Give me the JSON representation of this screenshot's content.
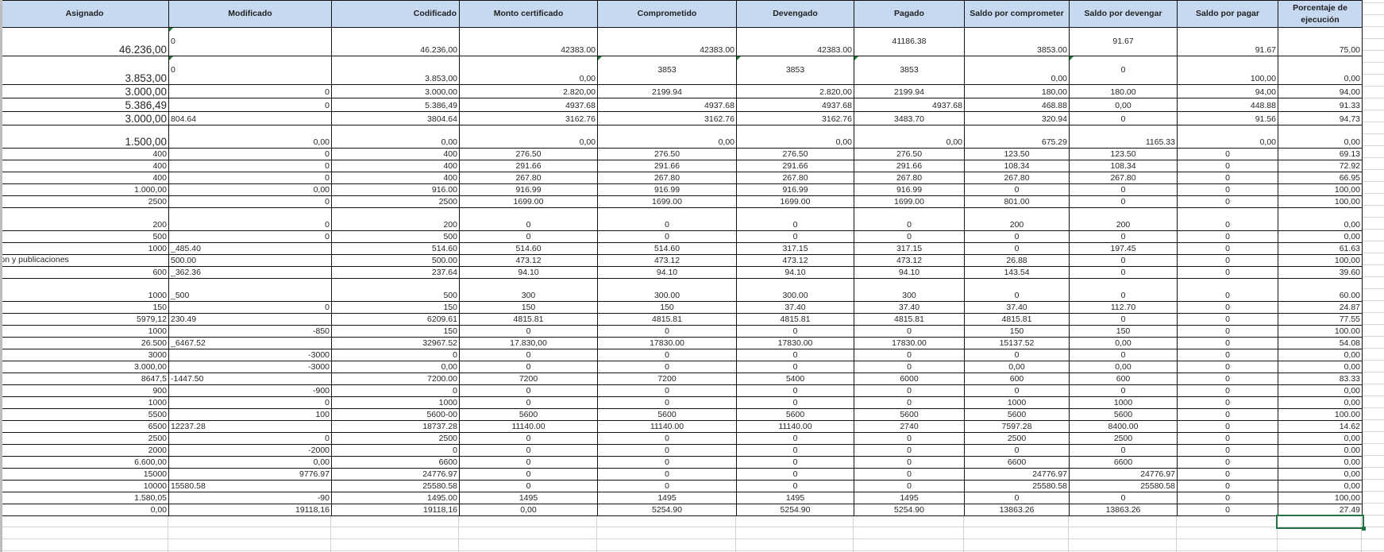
{
  "columns": [
    "Asignado",
    "Modificado",
    "Codificado",
    "Monto certificado",
    "Comprometido",
    "Devengado",
    "Pagado",
    "Saldo por comprometer",
    "Saldo por devengar",
    "Saldo por pagar",
    "Porcentaje de ejecución"
  ],
  "rows": [
    [
      "46.236,00",
      "0",
      "46.236,00",
      "42383.00",
      "42383.00",
      "42383.00",
      "41186.38",
      "3853.00",
      "91.67",
      "91.67",
      "75,00"
    ],
    [
      "3.853,00",
      "0",
      "3.853,00",
      "0,00",
      "3853",
      "3853",
      "3853",
      "0,00",
      "0",
      "100,00",
      "0,00"
    ],
    [
      "3.000,00",
      "0",
      "3.000,00",
      "2.820,00",
      "2199.94",
      "2.820,00",
      "2199.94",
      "180,00",
      "180.00",
      "94,00",
      "94,00"
    ],
    [
      "5.386,49",
      "0",
      "5.386,49",
      "4937.68",
      "4937.68",
      "4937.68",
      "4937.68",
      "468.88",
      "0,00",
      "448.88",
      "91.33"
    ],
    [
      "3.000,00",
      "804.64",
      "3804.64",
      "3162.76",
      "3162.76",
      "3162.76",
      "3483.70",
      "320.94",
      "0",
      "91.56",
      "94,73"
    ],
    [
      "1.500,00",
      "0,00",
      "0,00",
      "0,00",
      "0,00",
      "0,00",
      "0,00",
      "675.29",
      "1165.33",
      "0,00",
      "0,00"
    ],
    [
      "400",
      "0",
      "400",
      "276.50",
      "276.50",
      "276.50",
      "276.50",
      "123.50",
      "123.50",
      "0",
      "69.13"
    ],
    [
      "400",
      "0",
      "400",
      "291.66",
      "291.66",
      "291.66",
      "291.66",
      "108.34",
      "108.34",
      "0",
      "72.92"
    ],
    [
      "400",
      "0",
      "400",
      "267.80",
      "267.80",
      "267.80",
      "267.80",
      "267.80",
      "267.80",
      "0",
      "66.95"
    ],
    [
      "1.000,00",
      "0,00",
      "916.00",
      "916.99",
      "916.99",
      "916.99",
      "916.99",
      "0",
      "0",
      "0",
      "100,00"
    ],
    [
      "2500",
      "0",
      "2500",
      "1699.00",
      "1699.00",
      "1699.00",
      "1699.00",
      "801.00",
      "0",
      "0",
      "100,00"
    ],
    [
      "200",
      "0",
      "200",
      "0",
      "0",
      "0",
      "0",
      "200",
      "200",
      "0",
      "0,00"
    ],
    [
      "500",
      "0",
      "500",
      "0",
      "0",
      "0",
      "0",
      "0",
      "0",
      "0",
      "0,00"
    ],
    [
      "1000",
      "_485.40",
      "514.60",
      "514.60",
      "514.60",
      "317.15",
      "317.15",
      "0",
      "197.45",
      "0",
      "61.63"
    ],
    [
      "ucion y publicaciones",
      "500.00",
      "500.00",
      "473.12",
      "473.12",
      "473.12",
      "473.12",
      "26.88",
      "0",
      "0",
      "100,00"
    ],
    [
      "600",
      "_362.36",
      "237.64",
      "94.10",
      "94.10",
      "94.10",
      "94.10",
      "143.54",
      "0",
      "0",
      "39.60"
    ],
    [
      "1000",
      "_500",
      "500",
      "300",
      "300.00",
      "300.00",
      "300",
      "0",
      "0",
      "0",
      "60.00"
    ],
    [
      "150",
      "0",
      "150",
      "150",
      "150",
      "37.40",
      "37.40",
      "37.40",
      "112.70",
      "0",
      "24.87"
    ],
    [
      "5979,12",
      "230.49",
      "6209.61",
      "4815.81",
      "4815.81",
      "4815.81",
      "4815.81",
      "4815.81",
      "0",
      "0",
      "77.55"
    ],
    [
      "1000",
      "-850",
      "150",
      "0",
      "0",
      "0",
      "0",
      "150",
      "150",
      "0",
      "100.00"
    ],
    [
      "26.500",
      "_6467.52",
      "32967.52",
      "17.830,00",
      "17830.00",
      "17830.00",
      "17830.00",
      "15137.52",
      "0,00",
      "0",
      "54.08"
    ],
    [
      "3000",
      "-3000",
      "0",
      "0",
      "0",
      "0",
      "0",
      "0",
      "0",
      "0",
      "0,00"
    ],
    [
      "3.000,00",
      "-3000",
      "0,00",
      "0",
      "0",
      "0",
      "0",
      "0,00",
      "0,00",
      "0",
      "0,00"
    ],
    [
      "8647,5",
      "-1447.50",
      "7200.00",
      "7200",
      "7200",
      "5400",
      "6000",
      "600",
      "600",
      "0",
      "83.33"
    ],
    [
      "900",
      "-900",
      "0",
      "0",
      "0",
      "0",
      "0",
      "0",
      "0",
      "0",
      "0,00"
    ],
    [
      "1000",
      "0",
      "1000",
      "0",
      "0",
      "0",
      "0",
      "1000",
      "1000",
      "0",
      "0,00"
    ],
    [
      "5500",
      "100",
      "5600-00",
      "5600",
      "5600",
      "5600",
      "5600",
      "5600",
      "5600",
      "0",
      "100.00"
    ],
    [
      "6500",
      "12237.28",
      "18737.28",
      "11140.00",
      "11140.00",
      "11140.00",
      "2740",
      "7597.28",
      "8400.00",
      "0",
      "14.62"
    ],
    [
      "2500",
      "0",
      "2500",
      "0",
      "0",
      "0",
      "0",
      "2500",
      "2500",
      "0",
      "0,00"
    ],
    [
      "2000",
      "-2000",
      "0",
      "0",
      "0",
      "0",
      "0",
      "0",
      "0",
      "0",
      "0.00"
    ],
    [
      "6.600,00",
      "0,00",
      "6600",
      "0",
      "0",
      "0",
      "0",
      "6600",
      "6600",
      "0",
      "0,00"
    ],
    [
      "15000",
      "9776.97",
      "24776.97",
      "0",
      "0",
      "0",
      "0",
      "24776.97",
      "24776.97",
      "0",
      "0,00"
    ],
    [
      "10000",
      "15580.58",
      "25580.58",
      "0",
      "0",
      "0",
      "0",
      "25580.58",
      "25580.58",
      "0",
      "0,00"
    ],
    [
      "1.580,05",
      "-90",
      "1495.00",
      "1495",
      "1495",
      "1495",
      "1495",
      "0",
      "0",
      "0",
      "100,00"
    ],
    [
      "0,00",
      "19118,16",
      "19118,16",
      "0,00",
      "5254.90",
      "5254.90",
      "5254.90",
      "13863.26",
      "13863.26",
      "0",
      "27.49"
    ]
  ],
  "colors": {
    "header_bg": "#c6d9f1",
    "selection": "#217346",
    "note_marker": "#1e7b34"
  }
}
